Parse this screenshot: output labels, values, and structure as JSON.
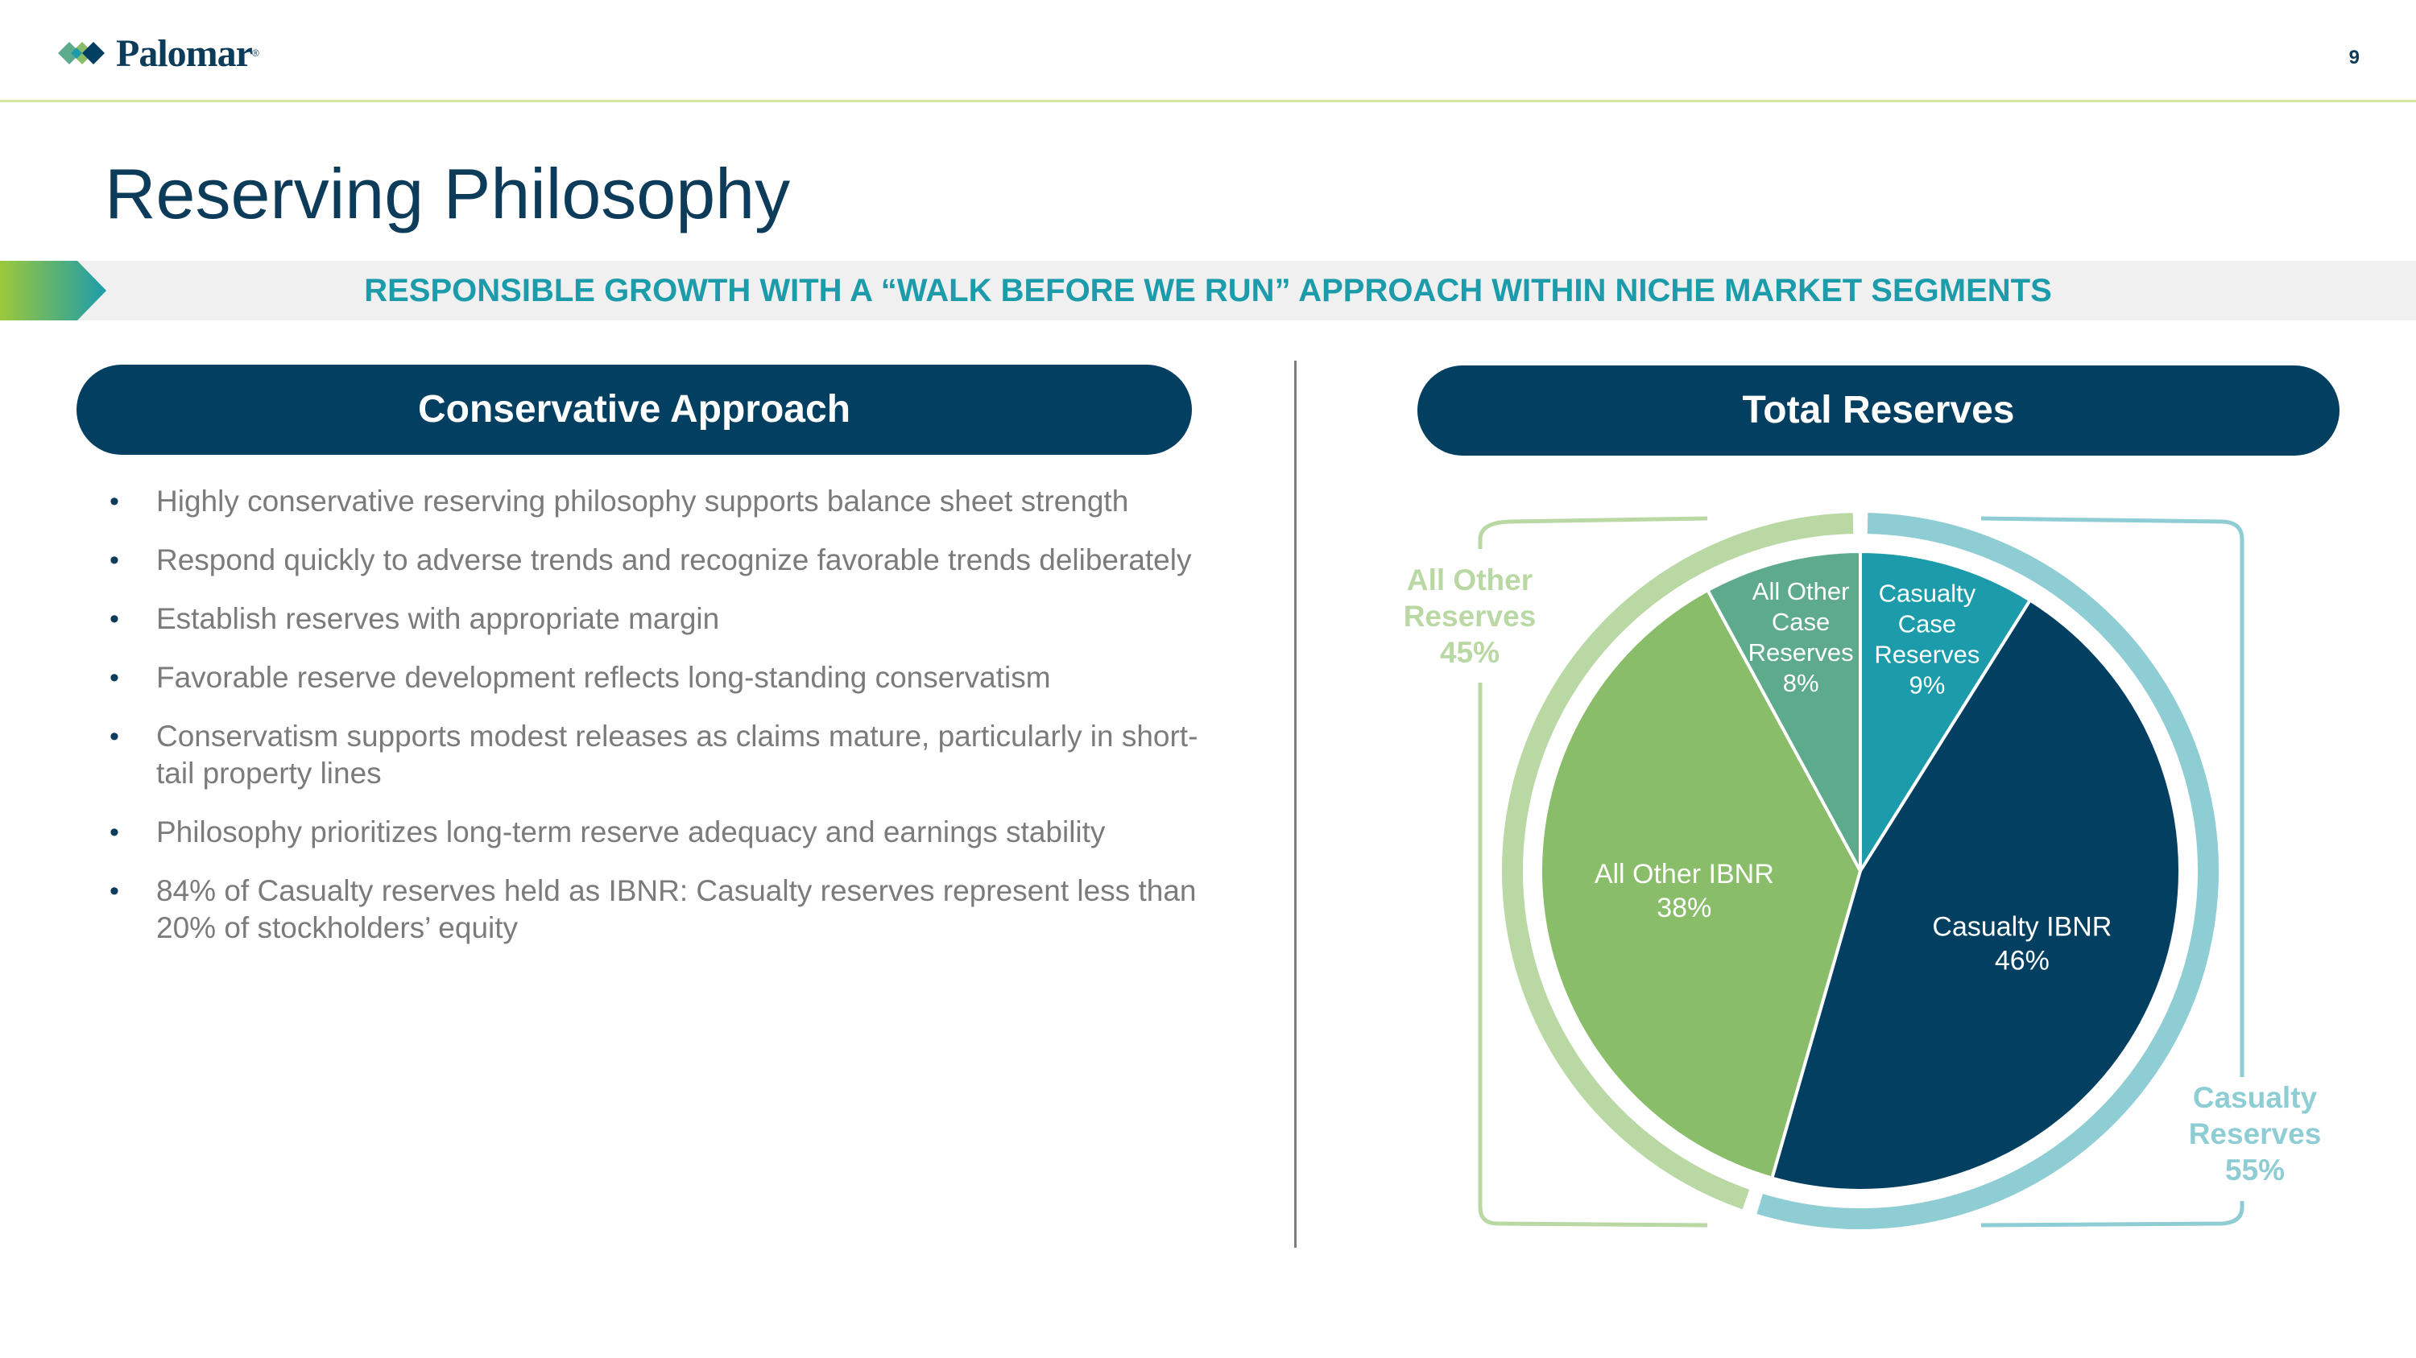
{
  "header": {
    "logo_text": "Palomar",
    "logo_mark": "®",
    "logo_icon": "palomar-diamond-icon",
    "page_number": "9"
  },
  "title": "Reserving Philosophy",
  "banner": {
    "text": "RESPONSIBLE GROWTH WITH A “WALK BEFORE WE RUN” APPROACH WITHIN NICHE MARKET SEGMENTS",
    "arrow_icon": "chevron-arrow-icon"
  },
  "left_section": {
    "heading": "Conservative Approach",
    "bullets": [
      "Highly conservative reserving philosophy supports balance sheet strength",
      "Respond quickly to adverse trends and recognize favorable trends deliberately",
      "Establish reserves with appropriate margin",
      "Favorable reserve development reflects long-standing conservatism",
      "Conservatism supports modest releases as claims mature, particularly in short-tail property lines",
      "Philosophy prioritizes long-term reserve adequacy and earnings stability",
      "84% of Casualty reserves held as IBNR: Casualty reserves represent less than 20% of stockholders’ equity"
    ]
  },
  "right_section": {
    "heading": "Total Reserves"
  },
  "colors": {
    "navy": "#033f61",
    "teal": "#1c9cab",
    "green": "#89bd6a",
    "sea_green": "#5dab8c",
    "light_green": "#b9d8a4",
    "light_teal": "#8fcdd4",
    "text_gray": "#7b7b7b"
  },
  "chart_data": {
    "type": "pie",
    "title": "Total Reserves",
    "slices": [
      {
        "label": "Casualty Case Reserves",
        "value": 9,
        "display": "9%",
        "color": "#1c9cab",
        "lines": [
          "Casualty",
          "Case",
          "Reserves",
          "9%"
        ]
      },
      {
        "label": "Casualty IBNR",
        "value": 46,
        "display": "46%",
        "color": "#033f61",
        "lines": [
          "Casualty IBNR",
          "46%"
        ]
      },
      {
        "label": "All Other IBNR",
        "value": 38,
        "display": "38%",
        "color": "#89bd6a",
        "lines": [
          "All Other IBNR",
          "38%"
        ]
      },
      {
        "label": "All Other Case Reserves",
        "value": 8,
        "display": "8%",
        "color": "#5dab8c",
        "lines": [
          "All Other",
          "Case",
          "Reserves",
          "8%"
        ]
      }
    ],
    "groups": [
      {
        "label": "All Other Reserves",
        "value": 45,
        "display": "45%",
        "color": "#b9d8a4",
        "lines": [
          "All Other",
          "Reserves",
          "45%"
        ]
      },
      {
        "label": "Casualty Reserves",
        "value": 55,
        "display": "55%",
        "color": "#8fcdd4",
        "lines": [
          "Casualty",
          "Reserves",
          "55%"
        ]
      }
    ]
  }
}
